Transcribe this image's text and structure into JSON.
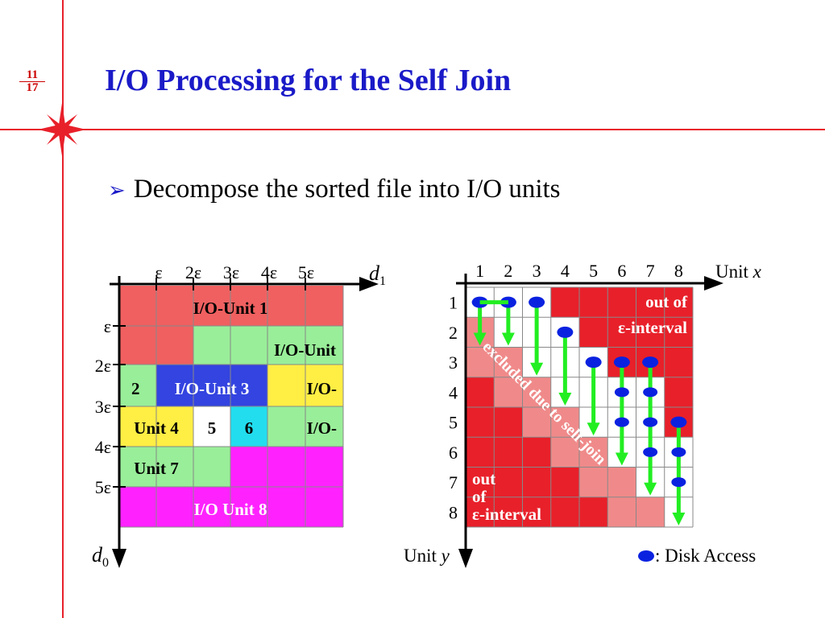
{
  "slide": {
    "page_current": "11",
    "page_total": "17",
    "title": "I/O Processing for the Self Join",
    "bullet_marker": "➢",
    "bullet": "Decompose the sorted file into I/O units"
  },
  "left_diagram": {
    "x_ticks": [
      "ε",
      "2ε",
      "3ε",
      "4ε",
      "5ε"
    ],
    "y_ticks": [
      "ε",
      "2ε",
      "3ε",
      "4ε",
      "5ε"
    ],
    "x_axis_base": "d",
    "x_axis_sub": "1",
    "y_axis_base": "d",
    "y_axis_sub": "0",
    "unit_labels": [
      "I/O-Unit 1",
      "I/O-Unit",
      "2",
      "I/O-Unit 3",
      "I/O-",
      "Unit 4",
      "5",
      "6",
      "I/O-",
      "Unit 7",
      "I/O Unit 8"
    ]
  },
  "right_diagram": {
    "x_ticks": [
      "1",
      "2",
      "3",
      "4",
      "5",
      "6",
      "7",
      "8"
    ],
    "y_ticks": [
      "1",
      "2",
      "3",
      "4",
      "5",
      "6",
      "7",
      "8"
    ],
    "x_axis_label": "Unit",
    "x_axis_var": "x",
    "y_axis_label": "Unit",
    "y_axis_var": "y",
    "label_top_right_1": "out of",
    "label_top_right_2": "ε-interval",
    "label_bottom_left_1": "out",
    "label_bottom_left_2": "of",
    "label_bottom_left_3": "ε-interval",
    "label_diagonal": "excluded due to self-join",
    "legend_text": ": Disk Access"
  },
  "colors": {
    "accent_red": "#e8202a",
    "title_blue": "#1a1ac8",
    "unit_red": "#f06060",
    "unit_green": "#99ee99",
    "unit_yellow": "#ffee44",
    "unit_blue": "#3344e0",
    "unit_cyan": "#22ddee",
    "unit_magenta": "#ff22ff",
    "cell_dark_red": "#e8202a",
    "cell_light_red": "#f08a8a",
    "disk_blue": "#0a22e0",
    "arrow_green": "#22ee22"
  }
}
